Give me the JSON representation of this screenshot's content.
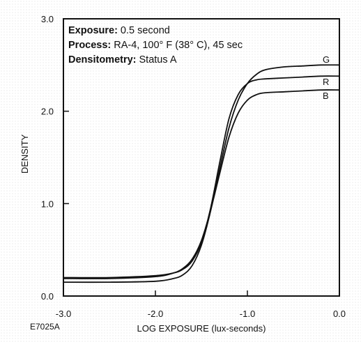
{
  "chart_data": {
    "type": "line",
    "figure_id": "E7025A",
    "info": [
      {
        "label": "Exposure:",
        "value": "0.5 second"
      },
      {
        "label": "Process:",
        "value": "RA-4, 100° F (38° C), 45 sec"
      },
      {
        "label": "Densitometry:",
        "value": "Status A"
      }
    ],
    "xlabel": "LOG EXPOSURE (lux-seconds)",
    "ylabel": "DENSITY",
    "xlim": [
      -3.0,
      0.0
    ],
    "ylim": [
      0.0,
      3.0
    ],
    "x_ticks": [
      -3.0,
      -2.0,
      -1.0,
      0.0
    ],
    "x_tick_labels": [
      "-3.0",
      "-2.0",
      "-1.0",
      "0.0"
    ],
    "y_ticks": [
      0.0,
      1.0,
      2.0,
      3.0
    ],
    "y_tick_labels": [
      "0.0",
      "1.0",
      "2.0",
      "3.0"
    ],
    "grid": false,
    "line_color": "#111111",
    "series": [
      {
        "name": "G",
        "x": [
          -3.0,
          -2.5,
          -2.0,
          -1.8,
          -1.7,
          -1.6,
          -1.5,
          -1.4,
          -1.3,
          -1.2,
          -1.1,
          -1.0,
          -0.9,
          -0.8,
          -0.6,
          -0.4,
          -0.2,
          0.0
        ],
        "y": [
          0.15,
          0.15,
          0.16,
          0.19,
          0.23,
          0.33,
          0.55,
          0.92,
          1.38,
          1.82,
          2.12,
          2.3,
          2.4,
          2.45,
          2.48,
          2.49,
          2.5,
          2.5
        ]
      },
      {
        "name": "R",
        "x": [
          -3.0,
          -2.5,
          -2.0,
          -1.8,
          -1.7,
          -1.6,
          -1.5,
          -1.4,
          -1.3,
          -1.2,
          -1.1,
          -1.0,
          -0.9,
          -0.8,
          -0.6,
          -0.4,
          -0.2,
          0.0
        ],
        "y": [
          0.2,
          0.2,
          0.22,
          0.25,
          0.29,
          0.38,
          0.58,
          0.95,
          1.45,
          1.92,
          2.18,
          2.3,
          2.34,
          2.35,
          2.36,
          2.37,
          2.38,
          2.38
        ]
      },
      {
        "name": "B",
        "x": [
          -3.0,
          -2.5,
          -2.0,
          -1.8,
          -1.7,
          -1.6,
          -1.5,
          -1.4,
          -1.3,
          -1.2,
          -1.1,
          -1.0,
          -0.9,
          -0.8,
          -0.6,
          -0.4,
          -0.2,
          0.0
        ],
        "y": [
          0.19,
          0.19,
          0.21,
          0.25,
          0.3,
          0.4,
          0.6,
          0.93,
          1.33,
          1.72,
          1.98,
          2.12,
          2.18,
          2.2,
          2.21,
          2.22,
          2.23,
          2.23
        ]
      }
    ]
  }
}
